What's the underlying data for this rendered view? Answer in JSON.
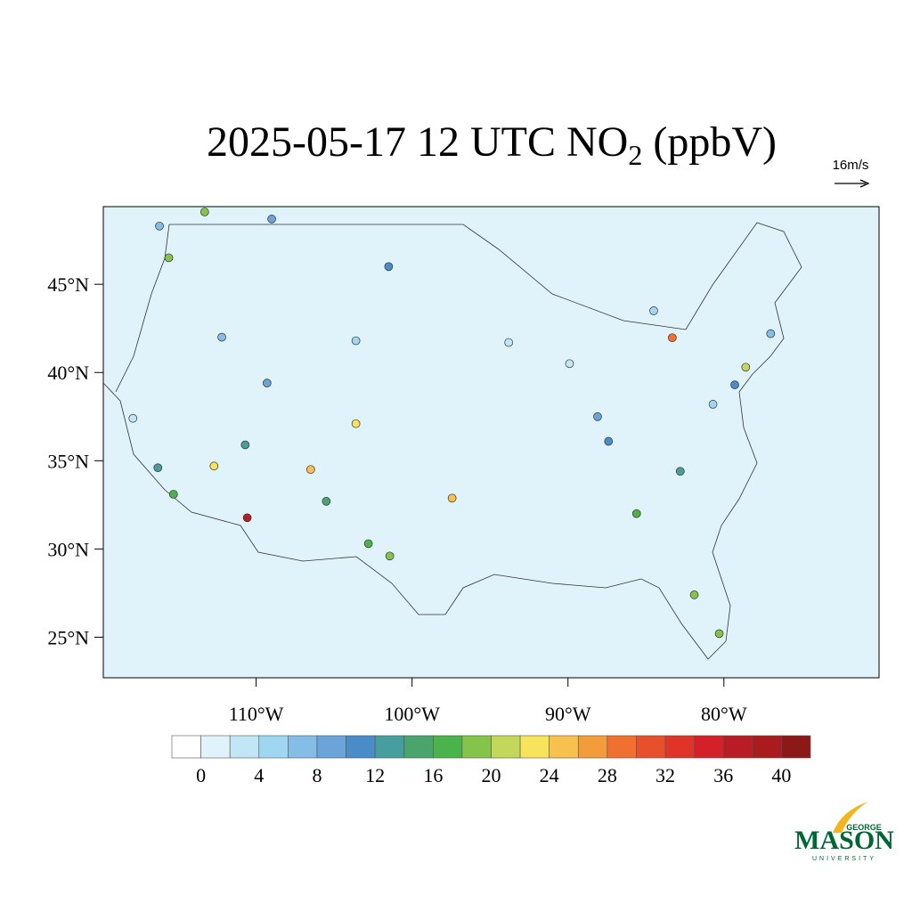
{
  "chart_data": {
    "type": "station-map",
    "title_parts": [
      "2025-05-17 12 UTC NO",
      "2",
      " (ppbV)"
    ],
    "reference_vector_label": "16m/s",
    "xlim": [
      -119.8,
      -70.05
    ],
    "ylim": [
      22.7,
      49.4
    ],
    "xticks": [
      {
        "value": -110,
        "label": "110°W"
      },
      {
        "value": -100,
        "label": "100°W"
      },
      {
        "value": -90,
        "label": "90°W"
      },
      {
        "value": -80,
        "label": "80°W"
      }
    ],
    "yticks": [
      {
        "value": 45,
        "label": "45°N"
      },
      {
        "value": 40,
        "label": "40°N"
      },
      {
        "value": 35,
        "label": "35°N"
      },
      {
        "value": 30,
        "label": "30°N"
      },
      {
        "value": 25,
        "label": "25°N"
      }
    ],
    "stations": {
      "lon": [
        -110.57,
        -83.31,
        -97.43,
        -101.43,
        -102.8,
        -115.6,
        -113.3,
        -115.3,
        -116.3,
        -112.7,
        -106.5,
        -105.5,
        -103.6,
        -110.7,
        -85.6,
        -81.9,
        -80.3,
        -78.6,
        -82.8,
        -101.5,
        -109.3,
        -109.0,
        -79.3,
        -116.2,
        -87.4,
        -88.1,
        -93.8,
        -89.9,
        -117.9,
        -77.0,
        -80.7,
        -112.2,
        -103.6,
        -84.5
      ],
      "lat": [
        31.77,
        41.97,
        32.88,
        29.6,
        30.3,
        46.5,
        49.1,
        33.1,
        34.6,
        34.7,
        34.5,
        32.7,
        37.1,
        35.9,
        32.0,
        27.4,
        25.2,
        40.3,
        34.4,
        46.0,
        39.4,
        48.7,
        39.3,
        48.3,
        36.1,
        37.5,
        41.7,
        40.5,
        37.4,
        42.2,
        38.2,
        42.0,
        41.8,
        43.5
      ],
      "values": [
        36,
        29,
        24,
        18,
        16,
        18,
        18,
        16,
        13,
        22,
        24,
        14,
        22,
        12,
        16,
        18,
        18,
        20,
        13,
        11,
        8,
        8,
        10,
        7,
        10,
        9,
        2,
        3,
        3,
        6,
        5,
        6,
        4,
        5
      ]
    },
    "colorbar": {
      "levels": [
        0,
        2,
        4,
        6,
        8,
        10,
        12,
        14,
        16,
        18,
        20,
        22,
        24,
        26,
        28,
        30,
        32,
        34,
        36,
        38,
        40
      ],
      "colors": [
        "#ffffff",
        "#e0f3fb",
        "#c1e7f7",
        "#9fd6f2",
        "#84bde6",
        "#6ba4d8",
        "#4a8cc8",
        "#479e9e",
        "#4aa46c",
        "#4ab44a",
        "#84c44a",
        "#c3d85a",
        "#f8e45c",
        "#f8c04c",
        "#f39c3c",
        "#f07030",
        "#e8502c",
        "#e03428",
        "#d42028",
        "#b81c24",
        "#a81c20",
        "#8c1818"
      ],
      "ticks": [
        0,
        4,
        8,
        12,
        16,
        20,
        24,
        28,
        32,
        36,
        40
      ]
    },
    "logo": {
      "top": "GEORGE",
      "main": "MASON",
      "bottom": "UNIVERSITY"
    }
  }
}
